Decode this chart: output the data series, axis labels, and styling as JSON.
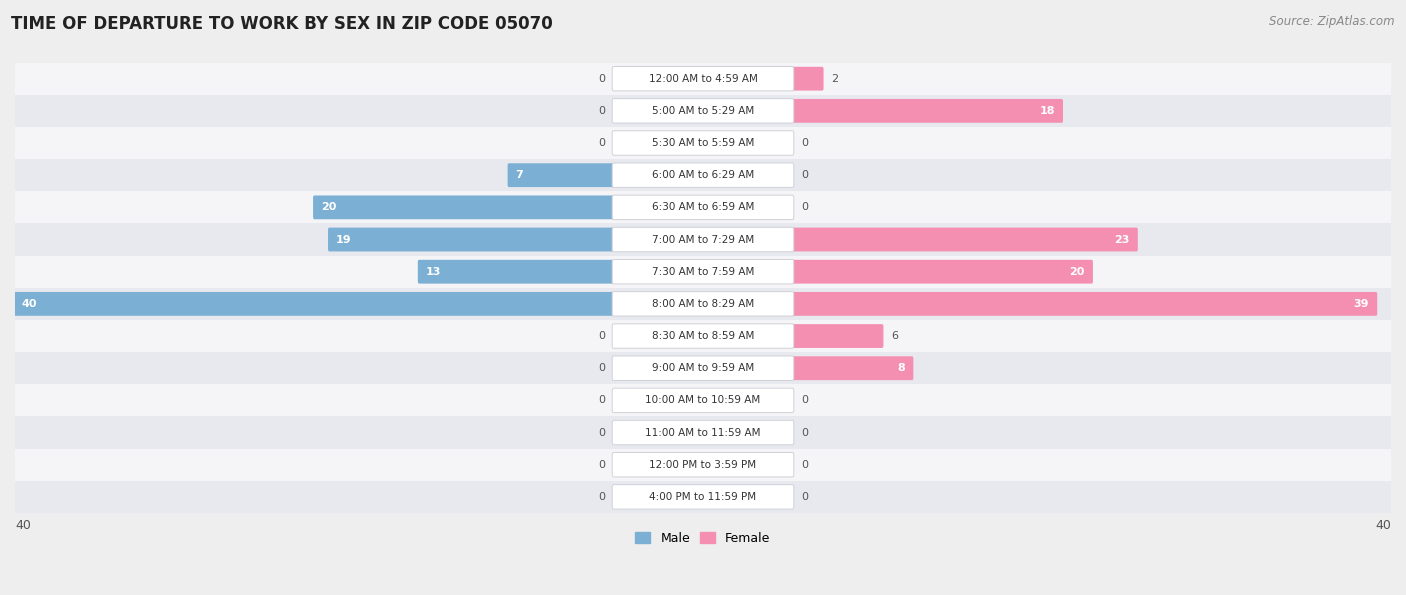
{
  "title": "TIME OF DEPARTURE TO WORK BY SEX IN ZIP CODE 05070",
  "source": "Source: ZipAtlas.com",
  "categories": [
    "12:00 AM to 4:59 AM",
    "5:00 AM to 5:29 AM",
    "5:30 AM to 5:59 AM",
    "6:00 AM to 6:29 AM",
    "6:30 AM to 6:59 AM",
    "7:00 AM to 7:29 AM",
    "7:30 AM to 7:59 AM",
    "8:00 AM to 8:29 AM",
    "8:30 AM to 8:59 AM",
    "9:00 AM to 9:59 AM",
    "10:00 AM to 10:59 AM",
    "11:00 AM to 11:59 AM",
    "12:00 PM to 3:59 PM",
    "4:00 PM to 11:59 PM"
  ],
  "male_values": [
    0,
    0,
    0,
    7,
    20,
    19,
    13,
    40,
    0,
    0,
    0,
    0,
    0,
    0
  ],
  "female_values": [
    2,
    18,
    0,
    0,
    0,
    23,
    20,
    39,
    6,
    8,
    0,
    0,
    0,
    0
  ],
  "male_color": "#7bafd4",
  "female_color": "#f48fb1",
  "male_label": "Male",
  "female_label": "Female",
  "axis_max": 40,
  "bg_color": "#eeeeee",
  "row_colors": [
    "#f5f5f8",
    "#e8e8ef"
  ],
  "title_fontsize": 12,
  "source_fontsize": 8.5,
  "cat_fontsize": 7.5,
  "val_fontsize": 8
}
